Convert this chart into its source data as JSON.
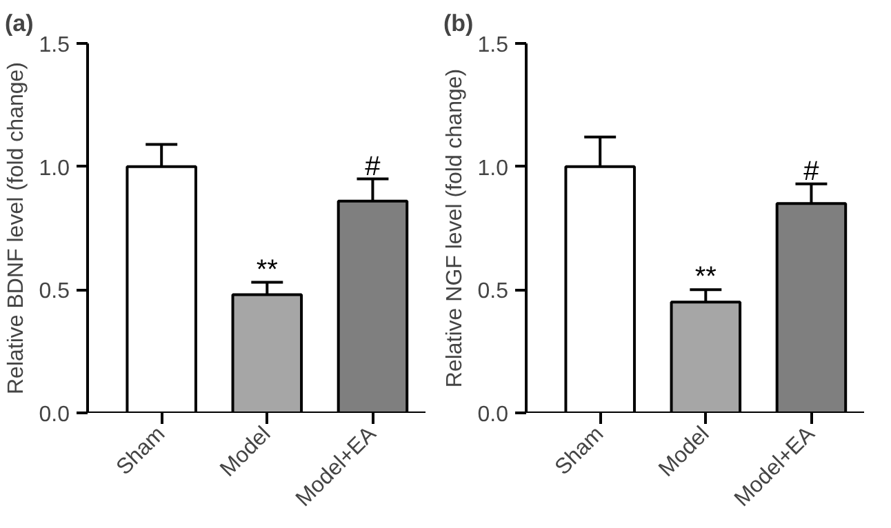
{
  "chart_data": [
    {
      "type": "bar",
      "title": "(a)",
      "ylabel": "Relative BDNF level (fold change)",
      "categories": [
        "Sham",
        "Model",
        "Model+EA"
      ],
      "values": [
        1.0,
        0.48,
        0.86
      ],
      "errors": [
        0.09,
        0.05,
        0.09
      ],
      "colors": [
        "#ffffff",
        "#a6a6a6",
        "#7f7f7f"
      ],
      "ylim": [
        0,
        1.5
      ],
      "yticks": [
        {
          "value": 0,
          "label": "0.0"
        },
        {
          "value": 0.5,
          "label": "0.5"
        },
        {
          "value": 1.0,
          "label": "1.0"
        },
        {
          "value": 1.5,
          "label": "1.5"
        }
      ],
      "annotations": [
        {
          "text": "**",
          "x": "Model",
          "y": 0.53
        },
        {
          "text": "#",
          "x": "Model+EA",
          "y": 0.95
        }
      ]
    },
    {
      "type": "bar",
      "title": "(b)",
      "ylabel": "Relative NGF level (fold change)",
      "categories": [
        "Sham",
        "Model",
        "Model+EA"
      ],
      "values": [
        1.0,
        0.45,
        0.85
      ],
      "errors": [
        0.12,
        0.05,
        0.08
      ],
      "colors": [
        "#ffffff",
        "#a6a6a6",
        "#7f7f7f"
      ],
      "ylim": [
        0,
        1.5
      ],
      "yticks": [
        {
          "value": 0,
          "label": "0.0"
        },
        {
          "value": 0.5,
          "label": "0.5"
        },
        {
          "value": 1.0,
          "label": "1.0"
        },
        {
          "value": 1.5,
          "label": "1.5"
        }
      ],
      "annotations": [
        {
          "text": "**",
          "x": "Model",
          "y": 0.5
        },
        {
          "text": "#",
          "x": "Model+EA",
          "y": 0.93
        }
      ]
    }
  ]
}
